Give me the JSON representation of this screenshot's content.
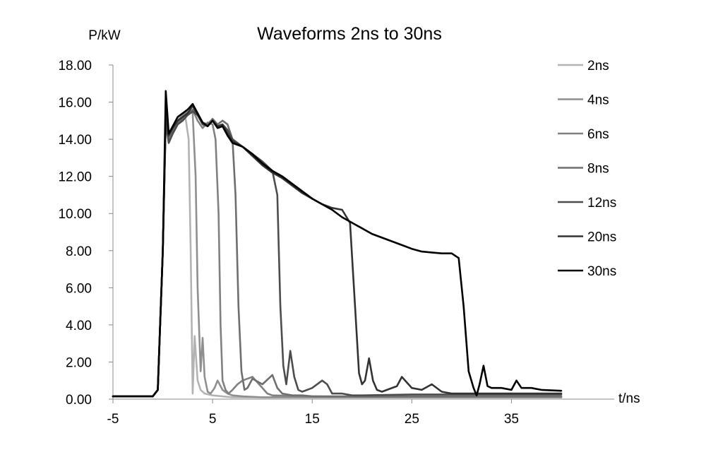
{
  "chart_data": {
    "type": "line",
    "title": "Waveforms 2ns to 30ns",
    "ylabel": "P/kW",
    "xlabel": "t/ns",
    "xlim": [
      -5,
      40
    ],
    "ylim": [
      0,
      18
    ],
    "x_ticks": [
      -5,
      5,
      15,
      25,
      35
    ],
    "x_tick_labels": [
      "-5",
      "5",
      "15",
      "25",
      "35"
    ],
    "y_ticks": [
      0,
      2,
      4,
      6,
      8,
      10,
      12,
      14,
      16,
      18
    ],
    "y_tick_labels": [
      "0.00",
      "2.00",
      "4.00",
      "6.00",
      "8.00",
      "10.00",
      "12.00",
      "14.00",
      "16.00",
      "18.00"
    ],
    "grid": false,
    "legend_position": "right",
    "series": [
      {
        "name": "2ns",
        "color": "#b3b3b3",
        "x": [
          -5,
          -1,
          -0.5,
          0,
          0.3,
          0.6,
          1,
          1.5,
          2,
          2.3,
          2.6,
          2.8,
          3.0,
          3.2,
          3.5,
          3.8,
          4.2,
          5.0,
          6.0,
          7,
          10,
          15,
          20,
          25,
          30,
          35,
          40
        ],
        "y": [
          0.15,
          0.15,
          0.5,
          8,
          15.0,
          14.0,
          14.5,
          15.0,
          15.3,
          15.1,
          14.0,
          8,
          0.3,
          3.4,
          1.0,
          0.5,
          0.3,
          0.2,
          0.15,
          0.1,
          0.1,
          0.1,
          0.1,
          0.1,
          0.1,
          0.1,
          0.1
        ]
      },
      {
        "name": "4ns",
        "color": "#8f8f8f",
        "x": [
          -5,
          -1,
          -0.5,
          0,
          0.3,
          0.6,
          1,
          1.5,
          2,
          2.5,
          3.0,
          3.3,
          3.5,
          3.8,
          4.0,
          4.2,
          4.5,
          4.8,
          5.2,
          5.5,
          6,
          6.5,
          7,
          8,
          10,
          15,
          20,
          25,
          30,
          35,
          40
        ],
        "y": [
          0.15,
          0.15,
          0.5,
          8,
          15.3,
          14.0,
          14.6,
          15.0,
          15.3,
          15.5,
          15.4,
          12,
          6,
          1.5,
          3.3,
          1.2,
          0.4,
          0.3,
          0.6,
          1.0,
          0.5,
          0.3,
          0.2,
          0.15,
          0.1,
          0.1,
          0.1,
          0.1,
          0.1,
          0.1,
          0.1
        ]
      },
      {
        "name": "6ns",
        "color": "#808080",
        "x": [
          -5,
          -1,
          -0.5,
          0,
          0.3,
          0.6,
          1,
          1.5,
          2,
          2.5,
          3.0,
          3.5,
          4,
          4.5,
          5,
          5.3,
          5.6,
          5.8,
          6.0,
          6.3,
          6.6,
          7,
          7.5,
          8,
          9,
          10,
          10.5,
          11,
          15,
          20,
          25,
          30,
          35,
          40
        ],
        "y": [
          0.15,
          0.15,
          0.5,
          8,
          15.2,
          14.0,
          14.5,
          15.0,
          15.2,
          15.3,
          15.6,
          15.0,
          14.6,
          14.9,
          14.8,
          14.0,
          10,
          4,
          1.0,
          0.5,
          0.3,
          0.5,
          0.8,
          1.0,
          1.2,
          0.6,
          0.3,
          0.2,
          0.15,
          0.12,
          0.12,
          0.12,
          0.12,
          0.12
        ]
      },
      {
        "name": "8ns",
        "color": "#6e6e6e",
        "x": [
          -5,
          -1,
          -0.5,
          0,
          0.3,
          0.6,
          1,
          1.5,
          2,
          2.5,
          3.0,
          3.5,
          4,
          4.5,
          5,
          5.5,
          6,
          6.5,
          7,
          7.3,
          7.6,
          7.9,
          8.2,
          8.5,
          9,
          10,
          11,
          11.5,
          12,
          13,
          14,
          15,
          20,
          25,
          30,
          35,
          40
        ],
        "y": [
          0.15,
          0.15,
          0.5,
          8,
          15.0,
          14.0,
          14.4,
          14.9,
          15.1,
          15.3,
          15.6,
          15.3,
          14.9,
          14.8,
          15.1,
          14.8,
          15.0,
          14.8,
          14.0,
          11,
          5,
          1.5,
          0.5,
          0.6,
          1.1,
          0.8,
          1.3,
          0.6,
          0.3,
          0.2,
          0.2,
          0.15,
          0.15,
          0.15,
          0.15,
          0.15,
          0.15
        ]
      },
      {
        "name": "12ns",
        "color": "#4d4d4d",
        "x": [
          -5,
          -1,
          -0.5,
          0,
          0.3,
          0.6,
          1,
          1.5,
          2,
          2.5,
          3.0,
          3.5,
          4,
          4.5,
          5,
          5.5,
          6,
          6.5,
          7,
          8,
          9,
          10,
          11,
          11.5,
          11.8,
          12.1,
          12.4,
          12.8,
          13.2,
          13.6,
          14,
          15,
          16,
          16.5,
          17,
          18,
          19,
          20,
          25,
          30,
          35,
          40
        ],
        "y": [
          0.15,
          0.15,
          0.5,
          8,
          14.9,
          13.8,
          14.3,
          14.8,
          15.0,
          15.3,
          15.5,
          15.3,
          14.8,
          14.7,
          15.0,
          14.7,
          14.8,
          14.5,
          14.0,
          13.6,
          13.2,
          12.8,
          12.3,
          11,
          5,
          1.8,
          0.8,
          2.6,
          1.2,
          0.5,
          0.4,
          0.6,
          1.0,
          0.8,
          0.3,
          0.3,
          0.2,
          0.2,
          0.25,
          0.25,
          0.25,
          0.25
        ]
      },
      {
        "name": "20ns",
        "color": "#333333",
        "x": [
          -5,
          -1,
          -0.5,
          0,
          0.3,
          0.6,
          1,
          1.5,
          2,
          2.5,
          3.0,
          3.5,
          4,
          4.5,
          5,
          5.5,
          6,
          6.5,
          7,
          8,
          9,
          10,
          11,
          12,
          13,
          14,
          15,
          16,
          17,
          18,
          18.8,
          19.3,
          19.7,
          20.0,
          20.3,
          20.7,
          21.1,
          21.5,
          22,
          22.5,
          23.5,
          24,
          25,
          26,
          27,
          28,
          29,
          30,
          35,
          40
        ],
        "y": [
          0.15,
          0.15,
          0.5,
          8,
          15.5,
          14.2,
          14.6,
          15.0,
          15.2,
          15.4,
          15.8,
          15.3,
          14.9,
          14.7,
          15.0,
          14.7,
          14.8,
          14.3,
          13.9,
          13.6,
          13.1,
          12.6,
          12.2,
          11.9,
          11.5,
          11.1,
          10.8,
          10.5,
          10.3,
          10.2,
          9.5,
          5,
          1.4,
          0.8,
          1.0,
          2.2,
          1.0,
          0.5,
          0.4,
          0.5,
          0.7,
          1.2,
          0.6,
          0.5,
          0.8,
          0.4,
          0.3,
          0.3,
          0.3,
          0.3
        ]
      },
      {
        "name": "30ns",
        "color": "#000000",
        "x": [
          -5,
          -1,
          -0.5,
          0,
          0.3,
          0.6,
          1,
          1.5,
          2,
          2.5,
          3.0,
          3.5,
          4,
          4.5,
          5,
          5.5,
          6,
          6.5,
          7,
          8,
          9,
          10,
          11,
          12,
          13,
          14,
          15,
          16,
          17,
          18,
          19,
          20,
          21,
          22,
          23,
          24,
          25,
          26,
          27,
          28,
          29,
          29.7,
          30.2,
          30.7,
          31.2,
          31.5,
          31.8,
          32.2,
          32.6,
          33,
          34,
          35,
          35.5,
          36,
          37,
          38,
          40
        ],
        "y": [
          0.15,
          0.15,
          0.5,
          8,
          16.6,
          14.3,
          14.7,
          15.2,
          15.4,
          15.6,
          15.9,
          15.4,
          14.9,
          14.7,
          15.0,
          14.6,
          14.7,
          14.2,
          13.8,
          13.6,
          13.2,
          12.7,
          12.3,
          12.0,
          11.6,
          11.2,
          10.8,
          10.5,
          10.2,
          9.8,
          9.5,
          9.2,
          8.9,
          8.7,
          8.5,
          8.3,
          8.1,
          7.95,
          7.9,
          7.85,
          7.85,
          7.6,
          5,
          1.5,
          0.6,
          0.2,
          0.8,
          1.8,
          0.7,
          0.6,
          0.6,
          0.5,
          1.0,
          0.6,
          0.6,
          0.5,
          0.45
        ]
      }
    ]
  }
}
